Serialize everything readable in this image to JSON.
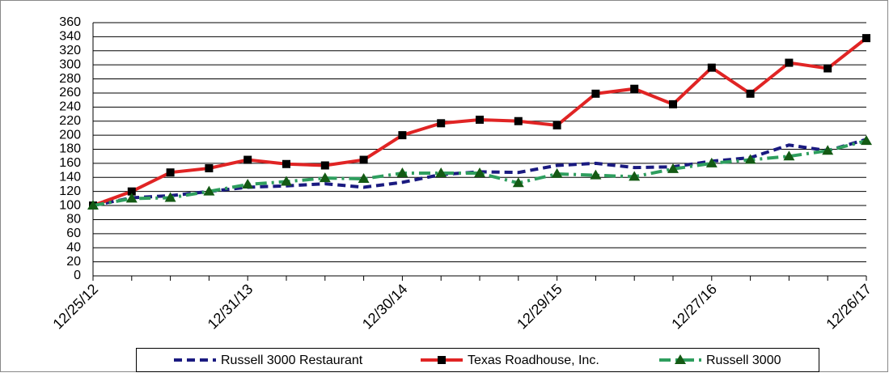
{
  "chart_data": {
    "type": "line",
    "categories": [
      "12/25/12",
      null,
      null,
      null,
      "12/31/13",
      null,
      null,
      null,
      "12/30/14",
      null,
      null,
      null,
      "12/29/15",
      null,
      null,
      null,
      "12/27/16",
      null,
      null,
      null,
      "12/26/17"
    ],
    "series": [
      {
        "name": "Russell 3000 Restaurant",
        "color": "#1a1a80",
        "dash": "dashed",
        "marker": "none",
        "values": [
          100,
          111,
          114,
          120,
          126,
          128,
          131,
          126,
          133,
          144,
          148,
          147,
          157,
          160,
          154,
          155,
          163,
          168,
          186,
          178,
          194
        ]
      },
      {
        "name": "Texas Roadhouse, Inc.",
        "color": "#e02424",
        "dash": "solid",
        "marker": "square",
        "marker_color": "#000000",
        "values": [
          100,
          120,
          147,
          153,
          165,
          159,
          157,
          165,
          200,
          217,
          222,
          220,
          214,
          259,
          266,
          244,
          296,
          259,
          303,
          295,
          338
        ]
      },
      {
        "name": "Russell 3000",
        "color": "#2e9e5e",
        "dash": "dashdot",
        "marker": "triangle",
        "marker_color": "#145a14",
        "values": [
          100,
          110,
          111,
          120,
          130,
          134,
          139,
          138,
          146,
          146,
          146,
          132,
          145,
          143,
          141,
          152,
          160,
          165,
          170,
          178,
          192
        ]
      }
    ],
    "ylim": [
      0,
      360
    ],
    "yticks": [
      0,
      20,
      40,
      60,
      80,
      100,
      120,
      140,
      160,
      180,
      200,
      220,
      240,
      260,
      280,
      300,
      320,
      340,
      360
    ],
    "grid": true,
    "legend": "bottom"
  }
}
